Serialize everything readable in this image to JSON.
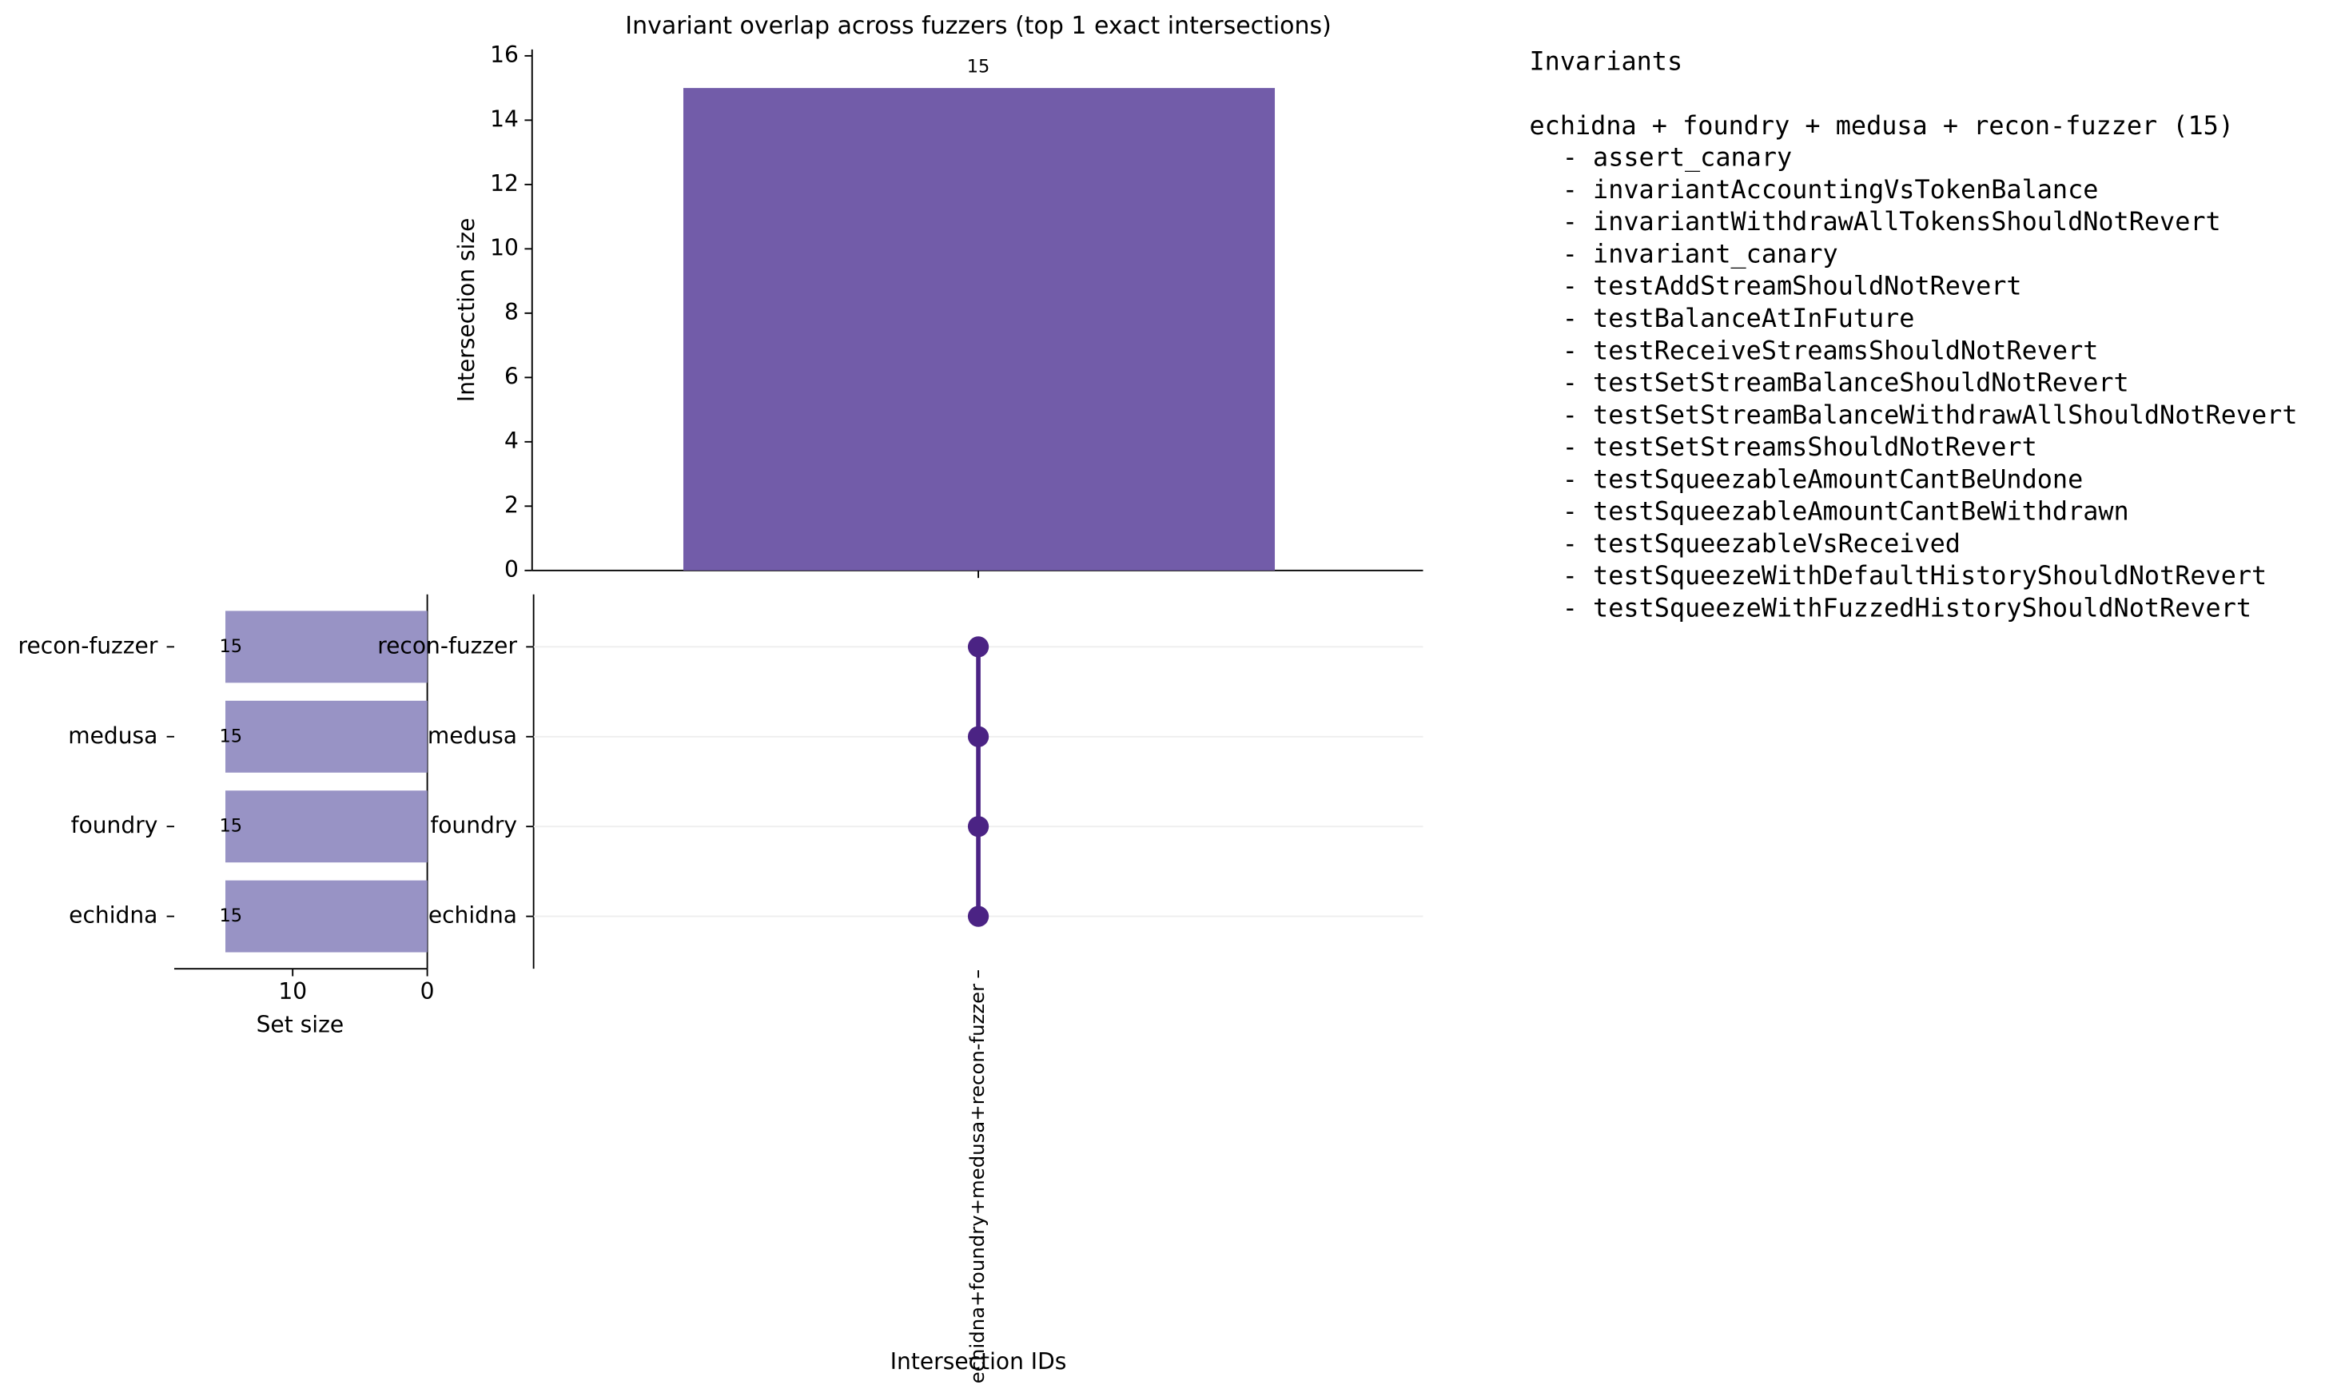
{
  "chart_data": [
    {
      "type": "bar",
      "title": "Invariant overlap across fuzzers (top 1 exact intersections)",
      "ylabel": "Intersection size",
      "xlabel": "Intersection IDs",
      "categories": [
        "echidna+foundry+medusa+recon-fuzzer"
      ],
      "values": [
        15
      ],
      "color": "#725ca9",
      "ylim": [
        0,
        16.2
      ],
      "yticks": [
        0,
        2,
        4,
        6,
        8,
        10,
        12,
        14,
        16
      ]
    },
    {
      "type": "barh",
      "xlabel": "Set size",
      "categories": [
        "recon-fuzzer",
        "medusa",
        "foundry",
        "echidna"
      ],
      "values": [
        15,
        15,
        15,
        15
      ],
      "color": "#9893c5",
      "xlim": [
        18.8,
        0
      ],
      "xticks": [
        10,
        0
      ]
    },
    {
      "type": "matrix",
      "categories": [
        "recon-fuzzer",
        "medusa",
        "foundry",
        "echidna"
      ],
      "memberships": [
        [
          true,
          true,
          true,
          true
        ]
      ],
      "color": "#4b2384"
    }
  ],
  "invariants": {
    "title": "Invariants",
    "heading": "echidna + foundry + medusa + recon-fuzzer (15)",
    "items": [
      "- assert_canary",
      "- invariantAccountingVsTokenBalance",
      "- invariantWithdrawAllTokensShouldNotRevert",
      "- invariant_canary",
      "- testAddStreamShouldNotRevert",
      "- testBalanceAtInFuture",
      "- testReceiveStreamsShouldNotRevert",
      "- testSetStreamBalanceShouldNotRevert",
      "- testSetStreamBalanceWithdrawAllShouldNotRevert",
      "- testSetStreamsShouldNotRevert",
      "- testSqueezableAmountCantBeUndone",
      "- testSqueezableAmountCantBeWithdrawn",
      "- testSqueezableVsReceived",
      "- testSqueezeWithDefaultHistoryShouldNotRevert",
      "- testSqueezeWithFuzzedHistoryShouldNotRevert"
    ]
  }
}
